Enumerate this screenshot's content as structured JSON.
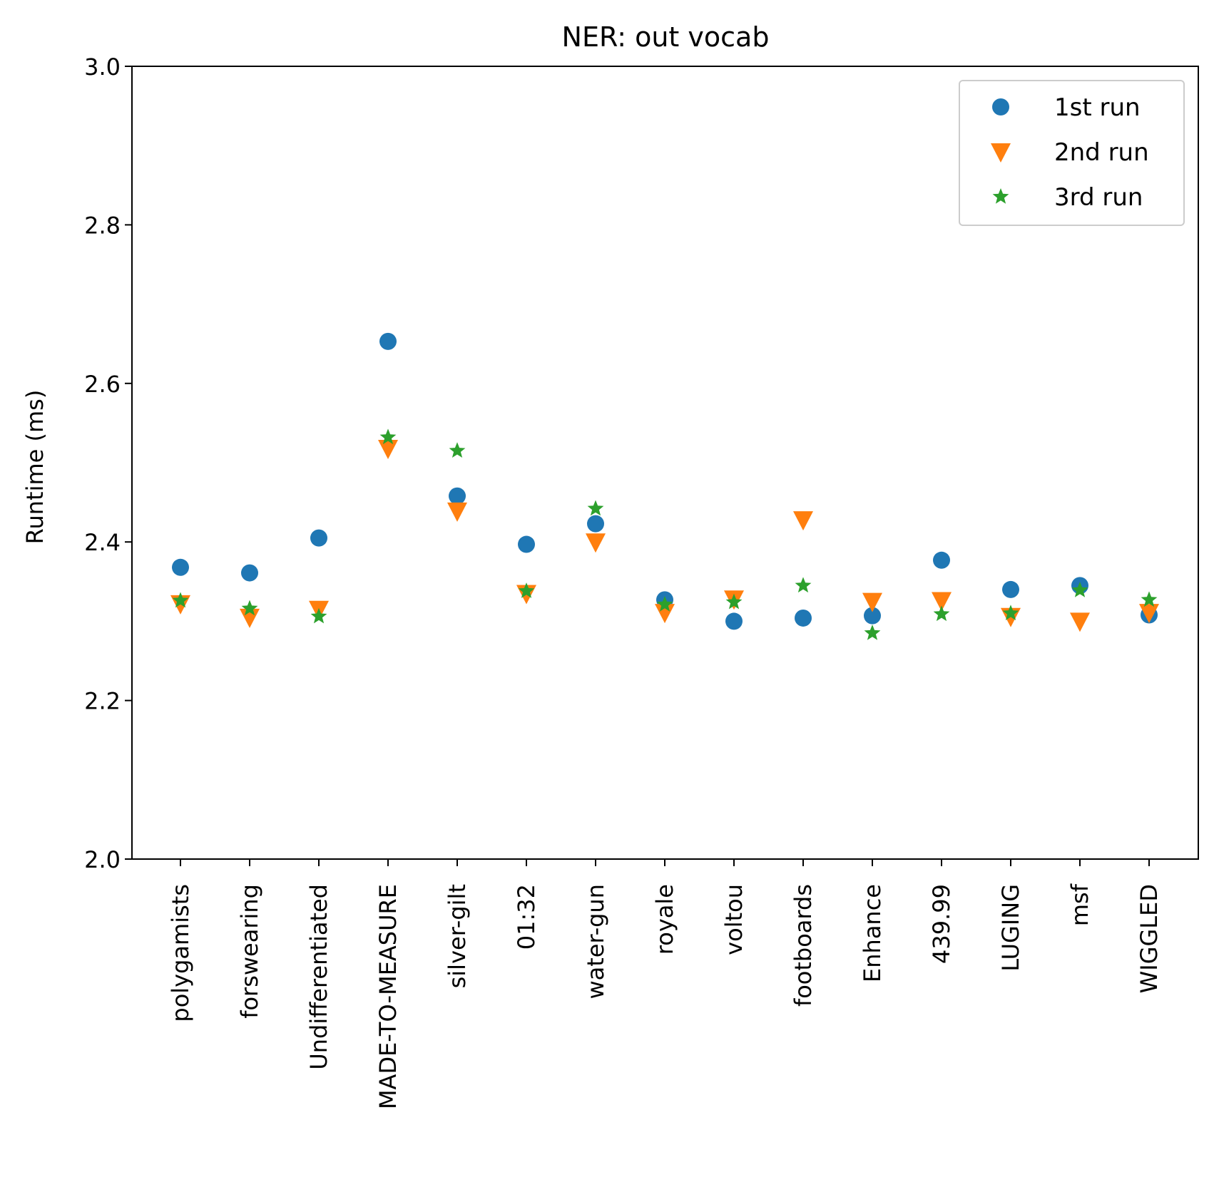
{
  "chart_data": {
    "type": "scatter",
    "title": "NER: out vocab",
    "xlabel": "",
    "ylabel": "Runtime (ms)",
    "ylim": [
      2.0,
      3.0
    ],
    "yticks": [
      "2.0",
      "2.2",
      "2.4",
      "2.6",
      "2.8",
      "3.0"
    ],
    "grid": false,
    "legend_position": "top-right",
    "categories": [
      "polygamists",
      "forswearing",
      "Undifferentiated",
      "MADE-TO-MEASURE",
      "silver-gilt",
      "01:32",
      "water-gun",
      "royale",
      "voltou",
      "footboards",
      "Enhance",
      "439.99",
      "LUGING",
      "msf",
      "WIGGLED"
    ],
    "series": [
      {
        "name": "1st run",
        "marker": "circle",
        "color": "#1f77b4",
        "values": [
          2.368,
          2.361,
          2.405,
          2.653,
          2.458,
          2.397,
          2.423,
          2.327,
          2.3,
          2.304,
          2.307,
          2.377,
          2.34,
          2.345,
          2.308
        ]
      },
      {
        "name": "2nd run",
        "marker": "triangle-down",
        "color": "#ff7f0e",
        "values": [
          2.322,
          2.305,
          2.315,
          2.518,
          2.439,
          2.335,
          2.4,
          2.311,
          2.328,
          2.428,
          2.325,
          2.326,
          2.306,
          2.3,
          2.311
        ]
      },
      {
        "name": "3rd run",
        "marker": "star",
        "color": "#2ca02c",
        "values": [
          2.326,
          2.316,
          2.306,
          2.532,
          2.515,
          2.338,
          2.442,
          2.321,
          2.324,
          2.345,
          2.285,
          2.309,
          2.31,
          2.339,
          2.327
        ]
      }
    ]
  }
}
